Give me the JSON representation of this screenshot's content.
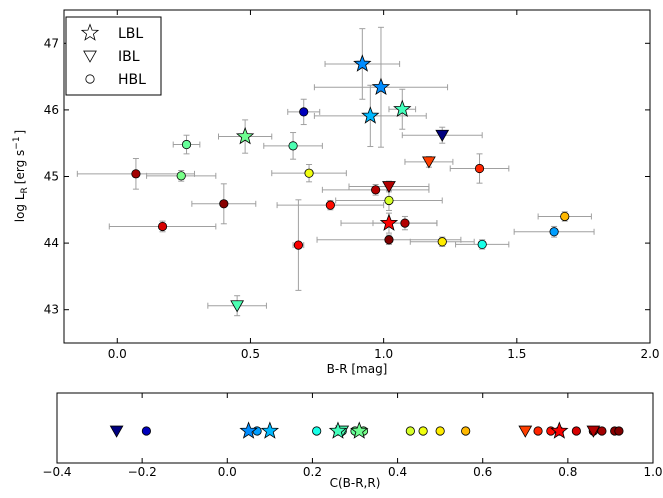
{
  "chart_data": [
    {
      "type": "scatter",
      "xlabel": "B-R [mag]",
      "ylabel": "log L",
      "ylabel_sub": "R",
      "ylabel_unit": "[erg s",
      "ylabel_exp": "−1",
      "ylabel_close": "]",
      "xlim": [
        -0.2,
        2.0
      ],
      "ylim": [
        42.5,
        47.5
      ],
      "xticks": [
        0.0,
        0.5,
        1.0,
        1.5,
        2.0
      ],
      "xtick_labels": [
        "0.0",
        "0.5",
        "1.0",
        "1.5",
        "2.0"
      ],
      "yticks": [
        43,
        44,
        45,
        46,
        47
      ],
      "ytick_labels": [
        "43",
        "44",
        "45",
        "46",
        "47"
      ],
      "legend": {
        "position": "top-left",
        "entries": [
          {
            "marker": "star",
            "label": "LBL"
          },
          {
            "marker": "triangle-down",
            "label": "IBL"
          },
          {
            "marker": "circle",
            "label": "HBL"
          }
        ]
      },
      "colormap": "jet",
      "points": [
        {
          "marker": "circle",
          "x": 0.07,
          "y": 45.04,
          "xerr": 0.22,
          "yerr": 0.23,
          "c": 0.88
        },
        {
          "marker": "circle",
          "x": 0.17,
          "y": 44.25,
          "xerr": 0.2,
          "yerr": 0.08,
          "c": 0.82
        },
        {
          "marker": "circle",
          "x": 0.24,
          "y": 45.01,
          "xerr": 0.13,
          "yerr": 0.08,
          "c": 0.32
        },
        {
          "marker": "circle",
          "x": 0.26,
          "y": 45.48,
          "xerr": 0.05,
          "yerr": 0.14,
          "c": 0.3
        },
        {
          "marker": "circle",
          "x": 0.4,
          "y": 44.59,
          "xerr": 0.12,
          "yerr": 0.3,
          "c": 0.91
        },
        {
          "marker": "triangle-down",
          "x": 0.45,
          "y": 43.06,
          "xerr": 0.11,
          "yerr": 0.15,
          "c": 0.27
        },
        {
          "marker": "star",
          "x": 0.48,
          "y": 45.6,
          "xerr": 0.1,
          "yerr": 0.25,
          "c": 0.31
        },
        {
          "marker": "circle",
          "x": 0.66,
          "y": 45.46,
          "xerr": 0.11,
          "yerr": 0.2,
          "c": 0.27
        },
        {
          "marker": "circle",
          "x": 0.68,
          "y": 43.97,
          "xerr": 0.02,
          "yerr": 0.68,
          "c": 0.78
        },
        {
          "marker": "circle",
          "x": 0.7,
          "y": 45.97,
          "xerr": 0.06,
          "yerr": 0.19,
          "c": -0.19
        },
        {
          "marker": "circle",
          "x": 0.72,
          "y": 45.05,
          "xerr": 0.14,
          "yerr": 0.13,
          "c": 0.46
        },
        {
          "marker": "circle",
          "x": 0.8,
          "y": 44.57,
          "xerr": 0.2,
          "yerr": 0.07,
          "c": 0.76
        },
        {
          "marker": "star",
          "x": 0.92,
          "y": 46.69,
          "xerr": 0.14,
          "yerr": 0.53,
          "c": 0.05
        },
        {
          "marker": "star",
          "x": 0.95,
          "y": 45.91,
          "xerr": 0.21,
          "yerr": 0.46,
          "c": 0.1
        },
        {
          "marker": "circle",
          "x": 0.97,
          "y": 44.8,
          "xerr": 0.2,
          "yerr": 0.08,
          "c": 0.86
        },
        {
          "marker": "star",
          "x": 0.99,
          "y": 46.34,
          "xerr": 0.25,
          "yerr": 0.9,
          "c": 0.05
        },
        {
          "marker": "circle",
          "x": 1.02,
          "y": 44.64,
          "xerr": 0.2,
          "yerr": 0.15,
          "c": 0.43
        },
        {
          "marker": "circle",
          "x": 1.02,
          "y": 44.05,
          "xerr": 0.27,
          "yerr": 0.07,
          "c": 0.92
        },
        {
          "marker": "triangle-down",
          "x": 1.02,
          "y": 44.85,
          "xerr": 0.15,
          "yerr": 0.08,
          "c": 0.86
        },
        {
          "marker": "star",
          "x": 1.02,
          "y": 44.3,
          "xerr": 0.18,
          "yerr": 0.15,
          "c": 0.78
        },
        {
          "marker": "star",
          "x": 1.07,
          "y": 46.01,
          "xerr": 0.05,
          "yerr": 0.3,
          "c": 0.26
        },
        {
          "marker": "circle",
          "x": 1.08,
          "y": 44.3,
          "xerr": 0.12,
          "yerr": 0.1,
          "c": 0.86
        },
        {
          "marker": "triangle-down",
          "x": 1.17,
          "y": 45.22,
          "xerr": 0.09,
          "yerr": 0.08,
          "c": 0.7
        },
        {
          "marker": "triangle-down",
          "x": 1.22,
          "y": 45.62,
          "xerr": 0.15,
          "yerr": 0.12,
          "c": -0.26
        },
        {
          "marker": "circle",
          "x": 1.22,
          "y": 44.02,
          "xerr": 0.12,
          "yerr": 0.07,
          "c": 0.5
        },
        {
          "marker": "circle",
          "x": 1.36,
          "y": 45.12,
          "xerr": 0.11,
          "yerr": 0.22,
          "c": 0.73
        },
        {
          "marker": "circle",
          "x": 1.37,
          "y": 43.98,
          "xerr": 0.1,
          "yerr": 0.07,
          "c": 0.21
        },
        {
          "marker": "circle",
          "x": 1.64,
          "y": 44.17,
          "xerr": 0.15,
          "yerr": 0.08,
          "c": 0.07
        },
        {
          "marker": "circle",
          "x": 1.68,
          "y": 44.4,
          "xerr": 0.1,
          "yerr": 0.07,
          "c": 0.56
        }
      ]
    },
    {
      "type": "scatter",
      "xlabel": "C(B-R,R)",
      "xlim": [
        -0.4,
        1.0
      ],
      "xticks": [
        -0.4,
        -0.2,
        0.0,
        0.2,
        0.4,
        0.6,
        0.8,
        1.0
      ],
      "xtick_labels": [
        "−0.4",
        "−0.2",
        "0.0",
        "0.2",
        "0.4",
        "0.6",
        "0.8",
        "1.0"
      ],
      "colormap": "jet",
      "points": [
        {
          "marker": "triangle-down",
          "x": -0.26
        },
        {
          "marker": "circle",
          "x": -0.19
        },
        {
          "marker": "star",
          "x": 0.05
        },
        {
          "marker": "circle",
          "x": 0.07
        },
        {
          "marker": "star",
          "x": 0.1
        },
        {
          "marker": "circle",
          "x": 0.21
        },
        {
          "marker": "circle",
          "x": 0.26
        },
        {
          "marker": "star",
          "x": 0.26
        },
        {
          "marker": "circle",
          "x": 0.27
        },
        {
          "marker": "triangle-down",
          "x": 0.27
        },
        {
          "marker": "circle",
          "x": 0.3
        },
        {
          "marker": "star",
          "x": 0.31
        },
        {
          "marker": "circle",
          "x": 0.32
        },
        {
          "marker": "circle",
          "x": 0.43
        },
        {
          "marker": "circle",
          "x": 0.46
        },
        {
          "marker": "circle",
          "x": 0.5
        },
        {
          "marker": "circle",
          "x": 0.56
        },
        {
          "marker": "triangle-down",
          "x": 0.7
        },
        {
          "marker": "circle",
          "x": 0.73
        },
        {
          "marker": "circle",
          "x": 0.76
        },
        {
          "marker": "star",
          "x": 0.78
        },
        {
          "marker": "circle",
          "x": 0.78
        },
        {
          "marker": "circle",
          "x": 0.82
        },
        {
          "marker": "circle",
          "x": 0.86
        },
        {
          "marker": "triangle-down",
          "x": 0.86
        },
        {
          "marker": "circle",
          "x": 0.86
        },
        {
          "marker": "circle",
          "x": 0.88
        },
        {
          "marker": "circle",
          "x": 0.91
        },
        {
          "marker": "circle",
          "x": 0.92
        }
      ]
    }
  ]
}
